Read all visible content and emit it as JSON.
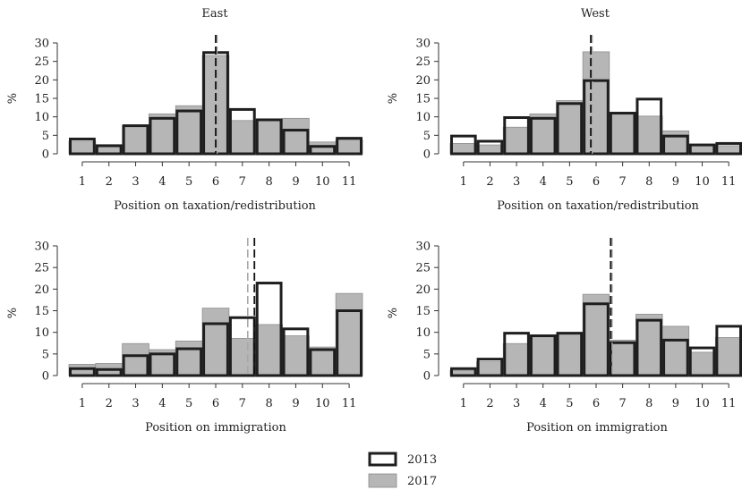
{
  "chart_data": [
    {
      "type": "bar",
      "title": "East",
      "xlabel": "Position on taxation/redistribution",
      "ylabel": "%",
      "ylim": [
        0,
        30
      ],
      "yticks": [
        0,
        5,
        10,
        15,
        20,
        25,
        30
      ],
      "categories": [
        "1",
        "2",
        "3",
        "4",
        "5",
        "6",
        "7",
        "8",
        "9",
        "10",
        "11"
      ],
      "series": [
        {
          "name": "2013",
          "values": [
            4,
            2.2,
            7.6,
            9.6,
            11.6,
            27.4,
            12,
            9.2,
            6.4,
            2,
            4.2
          ]
        },
        {
          "name": "2017",
          "values": [
            3.4,
            1.8,
            7.6,
            10.8,
            13,
            26.6,
            9,
            9,
            9.6,
            3.2,
            3.8
          ]
        }
      ],
      "mean_lines": {
        "2013": 6.0,
        "2017": 6.05
      }
    },
    {
      "type": "bar",
      "title": "West",
      "xlabel": "Position on taxation/redistribution",
      "ylabel": "%",
      "ylim": [
        0,
        30
      ],
      "yticks": [
        0,
        5,
        10,
        15,
        20,
        25,
        30
      ],
      "categories": [
        "1",
        "2",
        "3",
        "4",
        "5",
        "6",
        "7",
        "8",
        "9",
        "10",
        "11"
      ],
      "series": [
        {
          "name": "2013",
          "values": [
            4.8,
            3.4,
            9.8,
            9.6,
            13.6,
            19.8,
            11,
            14.8,
            4.8,
            2.4,
            2.8
          ]
        },
        {
          "name": "2017",
          "values": [
            2.8,
            2.4,
            7.2,
            10.8,
            14.4,
            27.6,
            11,
            10.2,
            6.2,
            2.4,
            2.2
          ]
        }
      ],
      "mean_lines": {
        "2013": 5.8,
        "2017": 5.85
      }
    },
    {
      "type": "bar",
      "title": "",
      "xlabel": "Position on immigration",
      "ylabel": "%",
      "ylim": [
        0,
        30
      ],
      "yticks": [
        0,
        5,
        10,
        15,
        20,
        25,
        30
      ],
      "categories": [
        "1",
        "2",
        "3",
        "4",
        "5",
        "6",
        "7",
        "8",
        "9",
        "10",
        "11"
      ],
      "series": [
        {
          "name": "2013",
          "values": [
            1.6,
            1.4,
            4.6,
            5,
            6.2,
            12,
            13.4,
            21.4,
            10.8,
            6,
            15
          ]
        },
        {
          "name": "2017",
          "values": [
            2.6,
            2.8,
            7.4,
            6,
            8,
            15.6,
            8.6,
            11.8,
            9.2,
            6.6,
            19
          ]
        }
      ],
      "mean_lines": {
        "2013": 7.45,
        "2017": 7.2
      }
    },
    {
      "type": "bar",
      "title": "",
      "xlabel": "Position on immigration",
      "ylabel": "%",
      "ylim": [
        0,
        30
      ],
      "yticks": [
        0,
        5,
        10,
        15,
        20,
        25,
        30
      ],
      "categories": [
        "1",
        "2",
        "3",
        "4",
        "5",
        "6",
        "7",
        "8",
        "9",
        "10",
        "11"
      ],
      "series": [
        {
          "name": "2013",
          "values": [
            1.6,
            3.8,
            9.8,
            9.2,
            9.8,
            16.6,
            7.6,
            12.8,
            8.2,
            6.4,
            11.4
          ]
        },
        {
          "name": "2017",
          "values": [
            1.2,
            3.2,
            7.4,
            9.2,
            9.6,
            18.8,
            8.2,
            14.2,
            11.4,
            5.4,
            8.8
          ]
        }
      ],
      "mean_lines": {
        "2013": 6.55,
        "2017": 6.6
      }
    }
  ],
  "legend": {
    "placement": "bottom-center",
    "items": [
      {
        "label": "2013",
        "style": "white fill, thick black border"
      },
      {
        "label": "2017",
        "style": "grey fill"
      }
    ]
  },
  "colors": {
    "bar_2017": "#b6b6b6",
    "bar_2013_edge": "#1e1e1e",
    "mean_2017": "#a8a8a8",
    "mean_2013": "#111111",
    "axis": "#333333"
  }
}
